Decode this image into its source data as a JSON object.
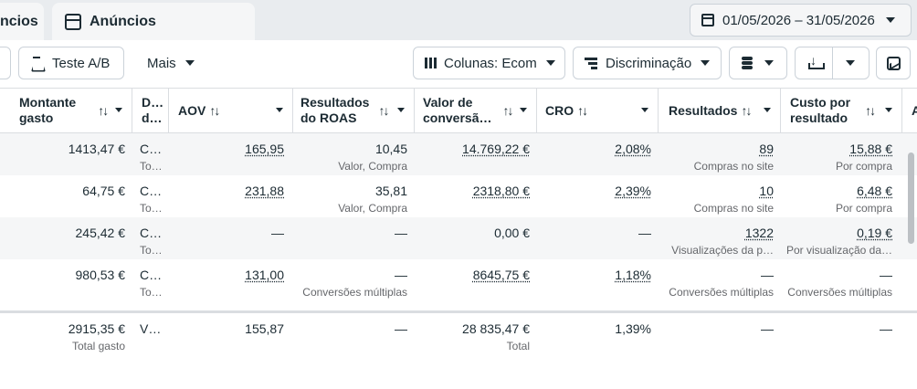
{
  "tabs": [
    {
      "label": "ncios"
    },
    {
      "label": "Anúncios"
    }
  ],
  "date_range": "01/05/2026 – 31/05/2026",
  "toolbar": {
    "ab_test_label": "Teste A/B",
    "more_label": "Mais",
    "columns_label": "Colunas: Ecom",
    "breakdown_label": "Discriminação"
  },
  "columns": [
    {
      "label_1": "Montante",
      "label_2": "gasto",
      "sort": "↑↓"
    },
    {
      "label_1": "D…",
      "label_2": "d…",
      "sort": ""
    },
    {
      "label_1": "AOV",
      "label_2": "",
      "sort": "↑↓"
    },
    {
      "label_1": "Resultados",
      "label_2": "do ROAS",
      "sort": "↑↓"
    },
    {
      "label_1": "Valor de",
      "label_2": "conversã…",
      "sort": "↑↓"
    },
    {
      "label_1": "CRO",
      "label_2": "",
      "sort": "↑↓"
    },
    {
      "label_1": "Resultados",
      "label_2": "",
      "sort": "↑↓"
    },
    {
      "label_1": "Custo por",
      "label_2": "resultado",
      "sort": "↑↓"
    },
    {
      "label_1": "A",
      "label_2": "",
      "sort": ""
    }
  ],
  "rows": [
    {
      "spend": "1413,47 €",
      "spend_sub": "",
      "d": "C…",
      "d_sub": "To…",
      "aov": "165,95",
      "roas": "10,45",
      "roas_sub": "Valor, Compra",
      "conv_value": "14.769,22 €",
      "cro": "2,08%",
      "results": "89",
      "results_sub": "Compras no site",
      "cost": "15,88 €",
      "cost_sub": "Por compra"
    },
    {
      "spend": "64,75 €",
      "spend_sub": "",
      "d": "C…",
      "d_sub": "To…",
      "aov": "231,88",
      "roas": "35,81",
      "roas_sub": "Valor, Compra",
      "conv_value": "2318,80 €",
      "cro": "2,39%",
      "results": "10",
      "results_sub": "Compras no site",
      "cost": "6,48 €",
      "cost_sub": "Por compra"
    },
    {
      "spend": "245,42 €",
      "spend_sub": "",
      "d": "C…",
      "d_sub": "To…",
      "aov": "—",
      "roas": "—",
      "roas_sub": "",
      "conv_value": "0,00 €",
      "cro": "—",
      "results": "1322",
      "results_sub": "Visualizações da p…",
      "cost": "0,19 €",
      "cost_sub": "Por visualização da…"
    },
    {
      "spend": "980,53 €",
      "spend_sub": "",
      "d": "C…",
      "d_sub": "To…",
      "aov": "131,00",
      "roas": "—",
      "roas_sub": "Conversões múltiplas",
      "conv_value": "8645,75 €",
      "cro": "1,18%",
      "results": "—",
      "results_sub": "Conversões múltiplas",
      "cost": "—",
      "cost_sub": "Conversões múltiplas"
    }
  ],
  "totals": {
    "spend": "2915,35 €",
    "spend_sub": "Total gasto",
    "d": "V…",
    "aov": "155,87",
    "roas": "—",
    "conv_value": "28 835,47 €",
    "conv_value_sub": "Total",
    "cro": "1,39%",
    "results": "—",
    "cost": "—"
  }
}
